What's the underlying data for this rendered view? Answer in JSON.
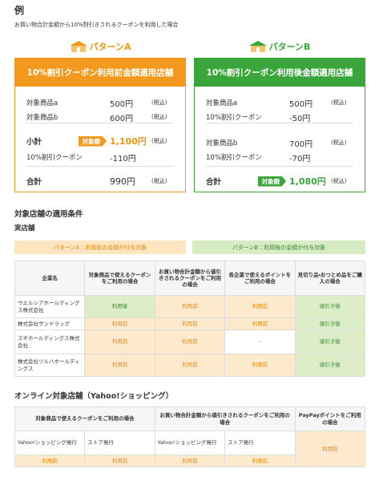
{
  "heading": "例",
  "subtitle": "お買い物合計金額から10%割引きされるクーポンを利用した場合",
  "cards": [
    {
      "title": "パターンA",
      "header": "10%割引クーポン利用前金額適用店舗",
      "rows": [
        {
          "label": "対象商品a",
          "value": "500円",
          "tax": "(税込)"
        },
        {
          "label": "対象商品b",
          "value": "600円",
          "tax": "(税込)"
        },
        {
          "label": "小計",
          "badge": "対象額",
          "value": "1,100円",
          "tax": "(税込)"
        },
        {
          "label": "10%割引クーポン",
          "value": "-110円"
        },
        {
          "label": "合計",
          "value": "990円",
          "tax": "(税込)"
        }
      ]
    },
    {
      "title": "パターンB",
      "header": "10%割引クーポン利用後金額適用店舗",
      "rows": [
        {
          "label": "対象商品a",
          "value": "500円",
          "tax": "(税込)"
        },
        {
          "label": "10%割引クーポン",
          "value": "-50円"
        },
        {
          "label": "対象商品b",
          "value": "700円",
          "tax": "(税込)"
        },
        {
          "label": "10%割引クーポン",
          "value": "-70円"
        },
        {
          "label": "合計",
          "badge": "対象額",
          "value": "1,080円",
          "tax": "(税込)"
        }
      ]
    }
  ],
  "conditions": {
    "title": "対象店舗の適用条件",
    "subtitle": "実店舗",
    "legend": [
      "パターンA：利用前の金額が付与対象",
      "パターンB：利用後の金額が付与対象"
    ],
    "header": [
      "企業名",
      "対象商品で使えるクーポンをご利用の場合",
      "お買い物合計金額から値引きされるクーポンをご利用の場合",
      "各企業で使えるポイントをご利用の場合",
      "見切り品・おつとめ品をご購入の場合"
    ],
    "rows": [
      [
        "ウエルシアホールディングス株式会社",
        "利用後",
        "利用前",
        "利用前",
        "値引き後"
      ],
      [
        "株式会社サンドラッグ",
        "利用前",
        "利用前",
        "利用前",
        "値引き後"
      ],
      [
        "スギホールディングス株式会社",
        "利用前",
        "利用前",
        "-",
        "値引き後"
      ],
      [
        "株式会社ツルハホールディングス",
        "利用前",
        "利用前",
        "利用前",
        "値引き後"
      ]
    ]
  },
  "online": {
    "title": "オンライン対象店舗（Yahoo!ショッピング）",
    "header": [
      "対象商品で使えるクーポンをご利用の場合",
      "お買い物合計金額から値引きされるクーポンをご利用の場合",
      "PayPayポイントをご利用の場合"
    ],
    "sub": [
      "Yahoo!ショッピング発行",
      "ストア発行",
      "Yahoo!ショッピング発行",
      "ストア発行"
    ],
    "values": [
      "利用前",
      "利用前",
      "利用前",
      "利用前"
    ],
    "paypay": "利用前"
  }
}
